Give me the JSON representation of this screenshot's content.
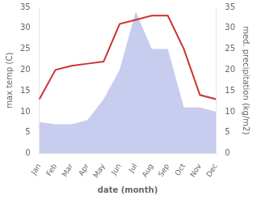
{
  "chart_data": {
    "type": "line",
    "xlabel": "date (month)",
    "ylabel": "max temp (C)",
    "y2label": "med. precipitation (kg/m2)",
    "categories": [
      "Jan",
      "Feb",
      "Mar",
      "Apr",
      "May",
      "Jun",
      "Jul",
      "Aug",
      "Sep",
      "Oct",
      "Nov",
      "Dec"
    ],
    "series": [
      {
        "type": "area",
        "color": "#c8ccee",
        "axis": "y2",
        "values": [
          7.5,
          7,
          7,
          8,
          13,
          20,
          34,
          25,
          25,
          11,
          11,
          10
        ]
      },
      {
        "type": "line",
        "color": "#cc3333",
        "values": [
          13,
          20,
          21,
          21.5,
          22,
          31,
          32,
          33,
          33,
          25,
          14,
          13
        ]
      }
    ],
    "ylim": [
      0,
      35
    ],
    "yticks": [
      0,
      5,
      10,
      15,
      20,
      25,
      30,
      35
    ],
    "y2lim": [
      0,
      35
    ],
    "y2ticks": [
      0,
      5,
      10,
      15,
      20,
      25,
      30,
      35
    ],
    "grid": false
  }
}
